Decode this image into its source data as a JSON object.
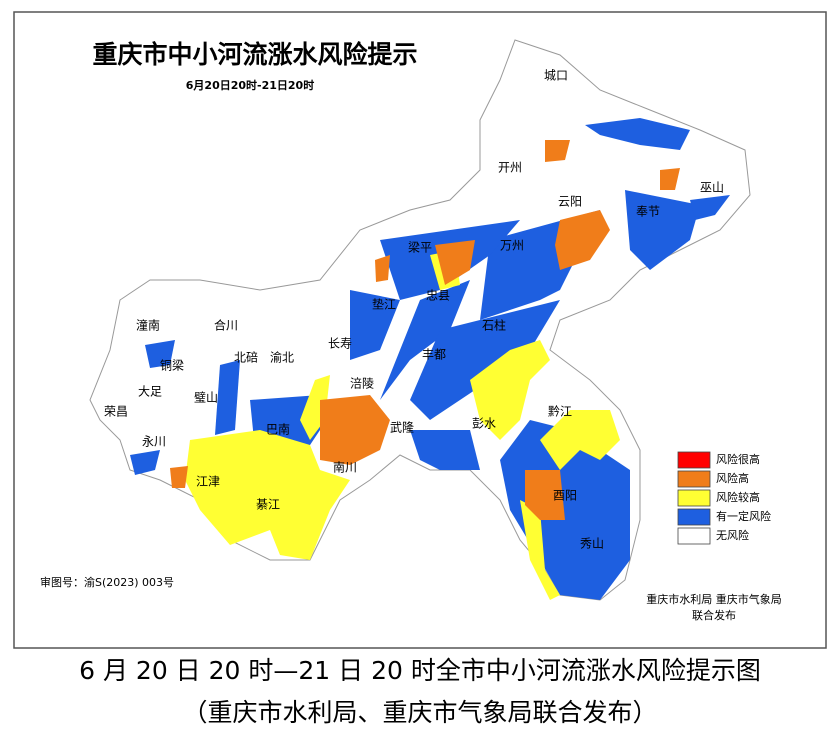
{
  "header": {
    "title": "重庆市中小河流涨水风险提示",
    "subtitle": "6月20日20时-21日20时"
  },
  "places": [
    "城口",
    "开州",
    "云阳",
    "巫山",
    "奉节",
    "万州",
    "梁平",
    "忠县",
    "石柱",
    "垫江",
    "长寿",
    "涪陵",
    "丰都",
    "彭水",
    "黔江",
    "酉阳",
    "秀山",
    "武隆",
    "南川",
    "綦江",
    "江津",
    "巴南",
    "璧山",
    "永川",
    "荣昌",
    "大足",
    "铜梁",
    "潼南",
    "合川",
    "北碚",
    "渝北"
  ],
  "legend": [
    {
      "label": "风险很高",
      "color": "#ff0000"
    },
    {
      "label": "风险高",
      "color": "#f07d1a"
    },
    {
      "label": "风险较高",
      "color": "#ffff33"
    },
    {
      "label": "有一定风险",
      "color": "#1e5fe0"
    },
    {
      "label": "无风险",
      "color": "#ffffff"
    }
  ],
  "map_code": "审图号：渝S(2023) 003号",
  "publisher": [
    "重庆市水利局  重庆市气象局",
    "联合发布"
  ],
  "caption": [
    "6 月 20 日 20 时—21 日 20 时全市中小河流涨水风险提示图",
    "（重庆市水利局、重庆市气象局联合发布）"
  ]
}
